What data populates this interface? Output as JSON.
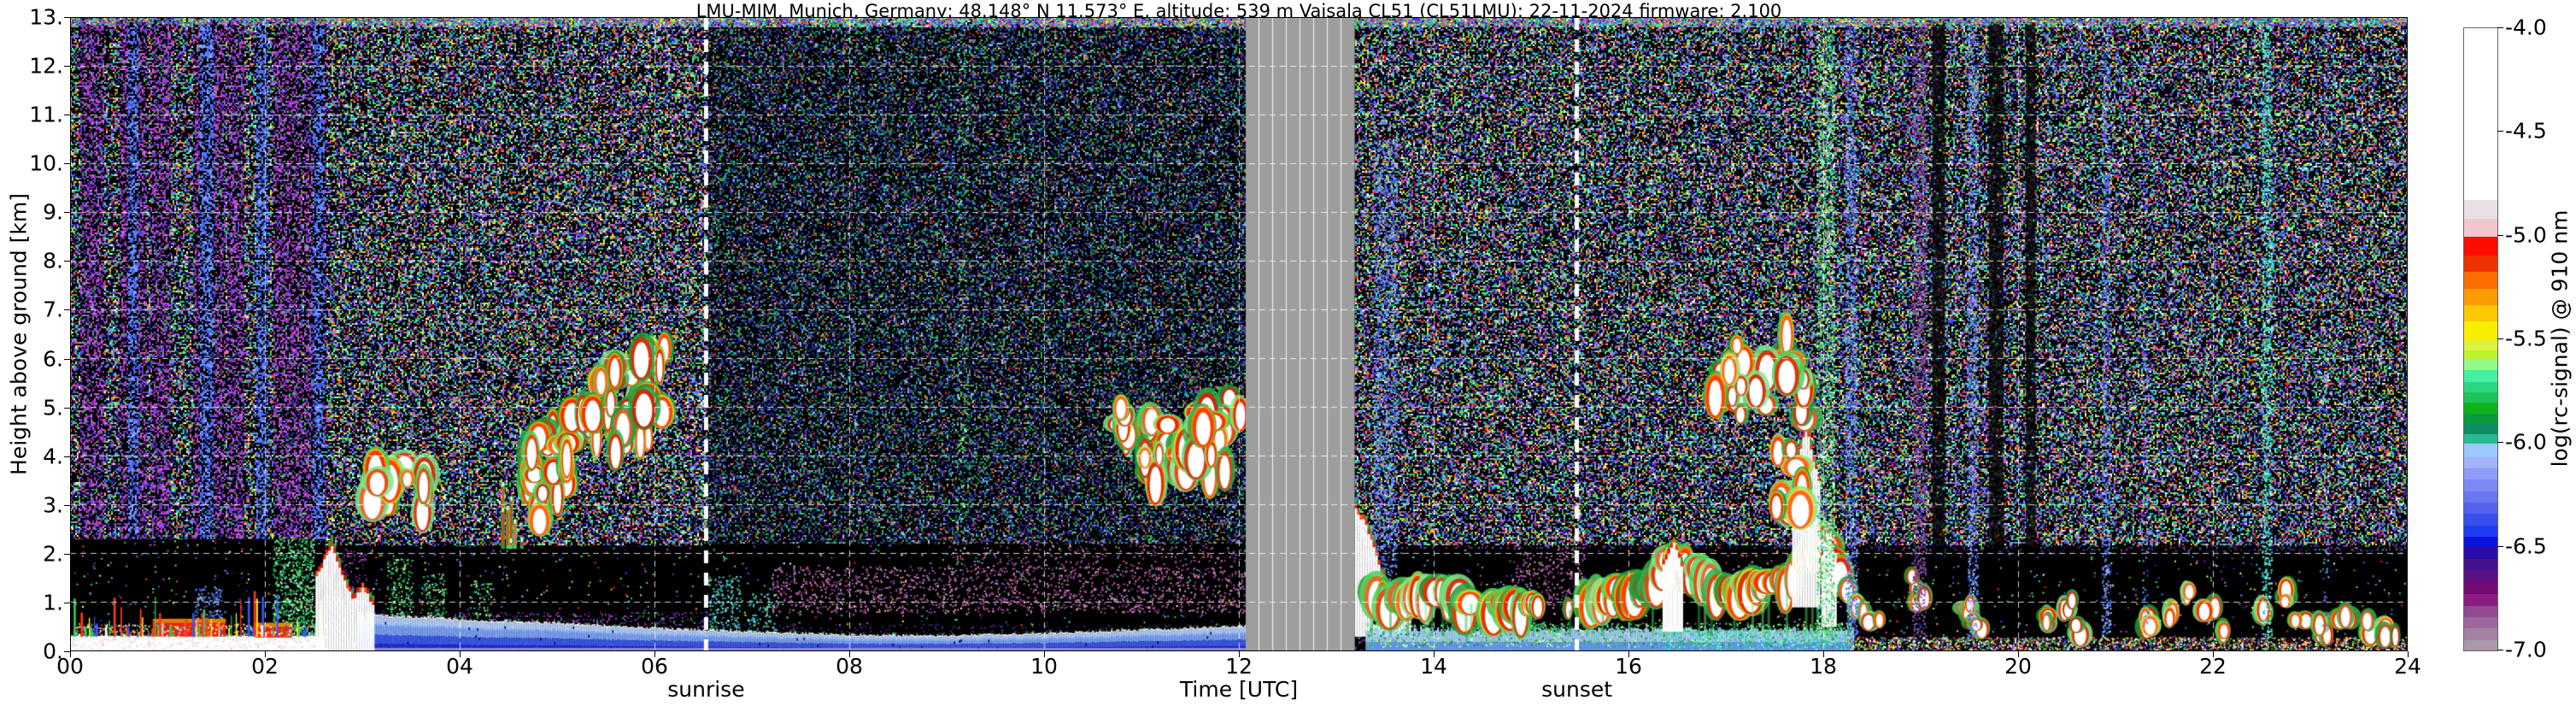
{
  "chart_data": {
    "type": "heatmap",
    "title": "LMU-MIM, Munich, Germany; 48.148° N 11.573° E, altitude: 539 m    Vaisala CL51 (CL51LMU): 22-11-2024    firmware: 2.100",
    "xlabel": "Time [UTC]",
    "ylabel": "Height above ground [km]",
    "x_range_hours": [
      0,
      24
    ],
    "y_range_km": [
      0,
      13
    ],
    "x_tick_values": [
      0,
      2,
      4,
      6,
      8,
      10,
      12,
      14,
      16,
      18,
      20,
      22,
      24
    ],
    "x_tick_labels": [
      "00",
      "02",
      "04",
      "06",
      "08",
      "10",
      "12",
      "14",
      "16",
      "18",
      "20",
      "22",
      "24"
    ],
    "y_tick_values": [
      0,
      1,
      2,
      3,
      4,
      5,
      6,
      7,
      8,
      9,
      10,
      11,
      12,
      13
    ],
    "y_tick_labels": [
      "0.",
      "1.",
      "2.",
      "3.",
      "4.",
      "5.",
      "6.",
      "7.",
      "8.",
      "9.",
      "10.",
      "11.",
      "12.",
      "13."
    ],
    "grid": {
      "color": "#ffffff",
      "style": "dashed",
      "x_step_hours": 2,
      "y_step_km": 1
    },
    "sun_events": {
      "sunrise": {
        "label": "sunrise",
        "time_utc": 6.53
      },
      "sunset": {
        "label": "sunset",
        "time_utc": 15.47
      }
    },
    "missing_data": {
      "start_utc": 12.07,
      "end_utc": 13.19,
      "color": "#9e9e9e",
      "n_inner_lines": 7
    },
    "colorbar": {
      "label": "log(rc-signal) @ 910 nm",
      "range": [
        -4.0,
        -7.0
      ],
      "tick_values": [
        -4.0,
        -4.5,
        -5.0,
        -5.5,
        -6.0,
        -6.5,
        -7.0
      ],
      "tick_labels": [
        "-4.0",
        "-4.5",
        "-5.0",
        "-5.5",
        "-6.0",
        "-6.5",
        "-7.0"
      ],
      "segments": [
        [
          "#ffffff",
          0.83
        ],
        [
          "#e9dfe6",
          0.09
        ],
        [
          "#f2c6ce",
          0.09
        ],
        [
          "#fd0d00",
          0.09
        ],
        [
          "#ef3201",
          0.08
        ],
        [
          "#fb6d01",
          0.08
        ],
        [
          "#fc9b01",
          0.08
        ],
        [
          "#fcc801",
          0.08
        ],
        [
          "#f8ee00",
          0.09
        ],
        [
          "#dcf23c",
          0.05
        ],
        [
          "#bdf32e",
          0.04
        ],
        [
          "#93fa87",
          0.055
        ],
        [
          "#42f0a5",
          0.055
        ],
        [
          "#2bd77e",
          0.05
        ],
        [
          "#1ac459",
          0.05
        ],
        [
          "#0db31a",
          0.055
        ],
        [
          "#0b9b3c",
          0.05
        ],
        [
          "#0d8e64",
          0.05
        ],
        [
          "#2aba92",
          0.045
        ],
        [
          "#9bc8fd",
          0.065
        ],
        [
          "#a3b1fa",
          0.055
        ],
        [
          "#8e9cf7",
          0.055
        ],
        [
          "#7c89f5",
          0.055
        ],
        [
          "#6976f2",
          0.055
        ],
        [
          "#5362ef",
          0.055
        ],
        [
          "#3a4eec",
          0.055
        ],
        [
          "#1e3cf2",
          0.055
        ],
        [
          "#0a12dd",
          0.05
        ],
        [
          "#2b0ca6",
          0.06
        ],
        [
          "#44128f",
          0.055
        ],
        [
          "#5c0f83",
          0.055
        ],
        [
          "#750a70",
          0.06
        ],
        [
          "#8a1d83",
          0.055
        ],
        [
          "#944994",
          0.055
        ],
        [
          "#9d679d",
          0.055
        ],
        [
          "#a381a3",
          0.055
        ],
        [
          "#ab98ab",
          0.05
        ]
      ]
    },
    "noise_seed": 42,
    "palettes": {
      "night": [
        "#3a55ee",
        "#5577ff",
        "#2233cc",
        "#8899ff",
        "#4466ee",
        "#22aa44",
        "#33cc55",
        "#55e877",
        "#22ddaa",
        "#99ff66",
        "#6633cc",
        "#8844dd",
        "#aa55ee",
        "#cc55cc",
        "#993399",
        "#ffee22",
        "#ffaa00",
        "#ff5500",
        "#ff2222",
        "#ffffff",
        "#22ccee",
        "#2fd4a0",
        "#1a2a99",
        "#dd66dd",
        "#44ff99"
      ],
      "day": [
        "#1a2a88",
        "#24349f",
        "#2f3fb5",
        "#3a2a8a",
        "#4a2a99",
        "#1f2f77",
        "#223a9a",
        "#5a2a7a",
        "#22aa44",
        "#1f9944",
        "#2fbf5f",
        "#118833",
        "#3355cc",
        "#aabbff",
        "#cc8833",
        "#cc3322",
        "#7788ee",
        "#11bbaa"
      ],
      "lowPurple": [
        "#3a1a4a",
        "#552266",
        "#6a2a7a",
        "#4a2a99",
        "#882299",
        "#aa44aa",
        "#2a1a3a",
        "#7a3aaa",
        "#3344bb",
        "#22aa44"
      ],
      "lowDay": [
        "#2a1a3a",
        "#3a2255",
        "#4a2a66",
        "#1a1a44",
        "#552277",
        "#333399"
      ],
      "stripes": [
        "#cc44cc",
        "#aa33aa",
        "#883399",
        "#bb55dd",
        "#6633cc",
        "#4444dd",
        "#dd66dd",
        "#5533bb",
        "#9944cc",
        "#33cc66"
      ],
      "blueCore": [
        "#4466ee",
        "#6688ff",
        "#3355dd",
        "#88aaff",
        "#5577ff"
      ],
      "greenPlume": [
        "#2fae4a",
        "#57e06b",
        "#19c2a0",
        "#9bf59b",
        "#0d8f35",
        "#bfffc0"
      ],
      "cyanPlume": [
        "#2bbcd4",
        "#55e0cc",
        "#3fd4f0",
        "#2fae6a",
        "#8ff0e0"
      ],
      "bluePlume": [
        "#5f86f8",
        "#7fa3fb",
        "#4a6af2",
        "#9fc0fd",
        "#3a55ee"
      ],
      "aerosol": [
        "#ffffff",
        "#ffee22",
        "#ff8800",
        "#ff3322",
        "#33cc55",
        "#3355ff",
        "#22ddaa",
        "#ffffff",
        "#ffbbbb"
      ],
      "pinkNoise": [
        "#f6e8ee",
        "#eedde6",
        "#f8d7dd",
        "#ffffff",
        "#f0c6ce"
      ],
      "cloudGreen": [
        "#2fae4a",
        "#4cd45f",
        "#1d9e3a",
        "#7fe88a"
      ],
      "cloudRed": [
        "#f22000",
        "#ff3300",
        "#e01800",
        "#ff5522"
      ],
      "cloudYellow": [
        "#ffd722",
        "#ffaa00",
        "#ff8800"
      ],
      "haze": [
        "#b05a9a",
        "#c77bb4",
        "#8a3a8a",
        "#d898c8",
        "#9a4a8a"
      ],
      "purpleStreak": [
        "#7a3a9a",
        "#8a55b0",
        "#5a2a8a",
        "#9a6ab0"
      ],
      "greenStreak": [
        "#2fae4a",
        "#57e06b",
        "#19c2a0",
        "#9bf59b",
        "#ffffff"
      ],
      "blueStreak": [
        "#4f7df7",
        "#7fa3fb",
        "#3a55ee",
        "#b0c8ff"
      ],
      "cyanStreak": [
        "#22ccbb",
        "#55eecc",
        "#3fd4f0",
        "#aaffee"
      ],
      "bl_blue": [
        "#ffffff",
        "#b9d4ff",
        "#7fa6fa",
        "#3d5cf0",
        "#1f30d6"
      ]
    },
    "features": {
      "stripe_columns": [
        [
          0.1,
          0.35
        ],
        [
          0.5,
          0.78
        ],
        [
          0.82,
          1.02
        ],
        [
          1.25,
          1.58
        ],
        [
          1.6,
          1.78
        ],
        [
          2.08,
          2.38
        ],
        [
          2.4,
          2.62
        ]
      ],
      "blue_cores": [
        [
          0.58,
          0.7
        ],
        [
          1.33,
          1.46
        ],
        [
          1.9,
          2.02
        ],
        [
          2.48,
          2.6
        ]
      ],
      "black_bands": [
        [
          0,
          2.62,
          0.36,
          2.3
        ],
        [
          3.05,
          6.6,
          0.8,
          2.15
        ],
        [
          6.6,
          12.07,
          0.55,
          2.2
        ],
        [
          13.3,
          18.3,
          0.0,
          2.1
        ],
        [
          18.25,
          24,
          0.28,
          2.05
        ]
      ],
      "haze_bands": [
        [
          7.2,
          12.07,
          0.8,
          1.75,
          0.2
        ],
        [
          9.0,
          12.07,
          1.75,
          2.3,
          0.09
        ],
        [
          14.8,
          15.55,
          0.9,
          2.4,
          0.16
        ],
        [
          13.3,
          13.45,
          1.4,
          2.9,
          0.12
        ]
      ],
      "plumes": [
        [
          2.08,
          2.5,
          0.3,
          2.35,
          0.5,
          "greenPlume"
        ],
        [
          1.28,
          1.55,
          0.35,
          1.35,
          0.3,
          "bluePlume"
        ],
        [
          3.25,
          3.52,
          0.72,
          1.9,
          0.28,
          "greenPlume"
        ],
        [
          3.6,
          3.86,
          0.72,
          1.6,
          0.25,
          "greenPlume"
        ],
        [
          4.1,
          4.32,
          0.7,
          1.45,
          0.22,
          "greenPlume"
        ],
        [
          6.55,
          6.88,
          0.42,
          1.55,
          0.28,
          "cyanPlume"
        ],
        [
          6.95,
          7.25,
          0.4,
          1.2,
          0.22,
          "cyanPlume"
        ],
        [
          13.38,
          13.62,
          1.3,
          10.5,
          0.35,
          "bluePlume"
        ],
        [
          9.1,
          9.22,
          2.0,
          12.8,
          0.1,
          "greenPlume"
        ]
      ],
      "morning_bl_top": [
        [
          2.95,
          0.8
        ],
        [
          3.3,
          0.72
        ],
        [
          3.8,
          0.68
        ],
        [
          4.3,
          0.62
        ],
        [
          4.8,
          0.6
        ],
        [
          5.3,
          0.55
        ],
        [
          5.8,
          0.5
        ],
        [
          6.3,
          0.45
        ],
        [
          6.8,
          0.42
        ],
        [
          7.3,
          0.38
        ],
        [
          8.0,
          0.34
        ],
        [
          8.7,
          0.32
        ],
        [
          9.3,
          0.34
        ],
        [
          10.0,
          0.37
        ],
        [
          10.7,
          0.42
        ],
        [
          11.3,
          0.46
        ],
        [
          11.7,
          0.5
        ],
        [
          12.07,
          0.52
        ]
      ],
      "overload_left": {
        "t0": 0,
        "t1": 2.62,
        "white_top": 0.32,
        "red_bands": [
          [
            0.85,
            1.6,
            0.3,
            0.58
          ],
          [
            1.9,
            2.28,
            0.28,
            0.5
          ]
        ],
        "needles": 80
      },
      "fog_left_top": [
        [
          2.52,
          1.55
        ],
        [
          2.6,
          1.9
        ],
        [
          2.68,
          2.2
        ],
        [
          2.74,
          1.9
        ],
        [
          2.82,
          1.45
        ],
        [
          2.9,
          1.1
        ],
        [
          3.0,
          1.35
        ],
        [
          3.12,
          0.95
        ]
      ],
      "swath_after_gap_top": [
        [
          13.19,
          2.95
        ],
        [
          13.3,
          2.6
        ],
        [
          13.42,
          1.85
        ],
        [
          13.55,
          1.15
        ],
        [
          13.75,
          1.0
        ]
      ],
      "cloud_needles": {
        "t0": 4.42,
        "t1": 4.78,
        "h0": 2.1,
        "h1": 4.25,
        "n": 7
      },
      "clusters": [
        {
          "t": [
            3.08,
            3.68
          ],
          "h": [
            2.5,
            3.9
          ],
          "n": 16
        },
        {
          "t": [
            4.7,
            5.1
          ],
          "h": [
            2.0,
            4.8
          ],
          "n": 22
        },
        {
          "t": [
            5.08,
            5.36
          ],
          "h": [
            3.2,
            5.2
          ],
          "n": 10
        },
        {
          "t": [
            5.35,
            6.12
          ],
          "h": [
            3.3,
            6.35
          ],
          "n": 34
        },
        {
          "t": [
            10.74,
            10.94
          ],
          "h": [
            4.2,
            5.15
          ],
          "n": 6
        },
        {
          "t": [
            11.03,
            11.47
          ],
          "h": [
            2.95,
            4.95
          ],
          "n": 16
        },
        {
          "t": [
            11.5,
            12.05
          ],
          "h": [
            3.1,
            5.35
          ],
          "n": 18
        },
        {
          "t": [
            16.8,
            17.82
          ],
          "h": [
            4.2,
            6.6
          ],
          "n": 30
        },
        {
          "t": [
            17.5,
            17.82
          ],
          "h": [
            2.5,
            4.3
          ],
          "n": 10
        }
      ],
      "afternoon_bl": {
        "t0": 13.3,
        "t1": 18.3,
        "tops": [
          [
            13.3,
            1.6
          ],
          [
            13.6,
            1.3
          ],
          [
            13.9,
            1.55
          ],
          [
            14.2,
            1.5
          ],
          [
            14.45,
            1.15
          ],
          [
            14.7,
            1.3
          ],
          [
            15.0,
            1.2
          ],
          [
            15.3,
            1.0
          ],
          [
            15.6,
            1.4
          ],
          [
            15.9,
            1.5
          ],
          [
            16.2,
            1.6
          ],
          [
            16.45,
            2.2
          ],
          [
            16.7,
            1.9
          ],
          [
            17.0,
            1.5
          ],
          [
            17.3,
            1.6
          ],
          [
            17.6,
            1.7
          ],
          [
            17.8,
            2.2
          ],
          [
            18.0,
            2.6
          ],
          [
            18.15,
            2.0
          ],
          [
            18.3,
            1.2
          ]
        ],
        "gap": [
          14.42,
          14.6
        ],
        "sparse_gap": [
          15.12,
          15.55
        ],
        "towers": [
          [
            16.35,
            16.55,
            2.25,
            0.4
          ],
          [
            17.68,
            17.95,
            4.6,
            0.9
          ],
          [
            17.98,
            18.12,
            2.6,
            0.5
          ]
        ]
      },
      "evening_blobs": [
        [
          18.38,
          0.85
        ],
        [
          18.52,
          0.6
        ],
        [
          18.92,
          1.4
        ],
        [
          19.02,
          1.1
        ],
        [
          19.48,
          0.85
        ],
        [
          19.58,
          0.5
        ],
        [
          20.33,
          0.62
        ],
        [
          20.5,
          0.92
        ],
        [
          20.63,
          0.45
        ],
        [
          21.35,
          0.55
        ],
        [
          21.55,
          0.78
        ],
        [
          21.78,
          1.08
        ],
        [
          21.97,
          0.82
        ],
        [
          22.12,
          0.5
        ],
        [
          22.55,
          0.78
        ],
        [
          22.72,
          1.12
        ],
        [
          22.9,
          0.55
        ],
        [
          23.12,
          0.42
        ],
        [
          23.35,
          0.62
        ],
        [
          23.6,
          0.48
        ],
        [
          23.82,
          0.36
        ]
      ],
      "evening_streaks": [
        [
          18.02,
          0.18,
          "greenStreak",
          0.5
        ],
        [
          18.28,
          0.12,
          "blueStreak",
          0.5
        ],
        [
          18.98,
          0.14,
          "purpleStreak",
          0.45
        ],
        [
          19.53,
          0.1,
          "blueStreak",
          0.45
        ],
        [
          20.9,
          0.09,
          "blueStreak",
          0.4
        ],
        [
          21.3,
          0.06,
          "blueStreak",
          0.18
        ],
        [
          22.55,
          0.1,
          "cyanStreak",
          0.45
        ],
        [
          23.15,
          0.06,
          "blueStreak",
          0.18
        ]
      ],
      "dropout_columns": [
        [
          19.12,
          19.25
        ],
        [
          19.7,
          19.85
        ],
        [
          20.08,
          20.18
        ]
      ]
    }
  }
}
